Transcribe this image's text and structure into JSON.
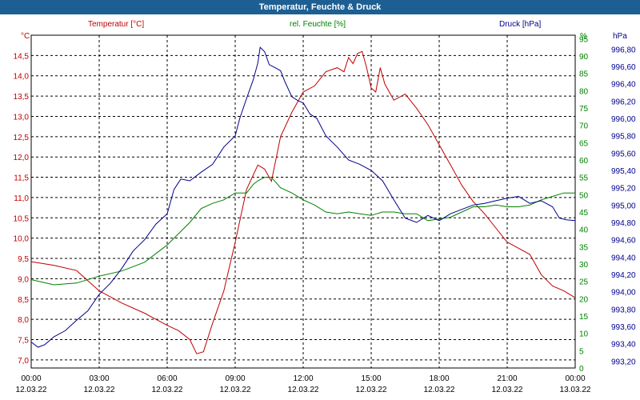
{
  "window": {
    "title": "Temperatur, Feuchte & Druck"
  },
  "colors": {
    "temperature": "#c00000",
    "humidity": "#008000",
    "pressure": "#00008b",
    "title_bar": "#1d5f92"
  },
  "chart_data": {
    "type": "line",
    "title": "Temperatur, Feuchte & Druck",
    "grid": true,
    "x_ticks": [
      {
        "time": "00:00",
        "date": "12.03.22"
      },
      {
        "time": "03:00",
        "date": "12.03.22"
      },
      {
        "time": "06:00",
        "date": "12.03.22"
      },
      {
        "time": "09:00",
        "date": "12.03.22"
      },
      {
        "time": "12:00",
        "date": "12.03.22"
      },
      {
        "time": "15:00",
        "date": "12.03.22"
      },
      {
        "time": "18:00",
        "date": "12.03.22"
      },
      {
        "time": "21:00",
        "date": "12.03.22"
      },
      {
        "time": "00:00",
        "date": "13.03.22"
      }
    ],
    "x_unit": "hours",
    "xlim": [
      0,
      24
    ],
    "axes": {
      "temperature": {
        "header": "Temperatur [°C]",
        "unit": "°C",
        "side": "left",
        "ylim": [
          6.8,
          15.0
        ],
        "ticks": [
          "7,0",
          "7,5",
          "8,0",
          "8,5",
          "9,0",
          "9,5",
          "10,0",
          "10,5",
          "11,0",
          "11,5",
          "12,0",
          "12,5",
          "13,0",
          "13,5",
          "14,0",
          "14,5"
        ]
      },
      "humidity": {
        "header": "rel. Feuchte [%]",
        "unit": "%",
        "side": "right-inner",
        "ylim": [
          0,
          96
        ],
        "ticks": [
          "0",
          "5",
          "10",
          "15",
          "20",
          "25",
          "30",
          "35",
          "40",
          "45",
          "50",
          "55",
          "60",
          "65",
          "70",
          "75",
          "80",
          "85",
          "90",
          "95"
        ]
      },
      "pressure": {
        "header": "Druck [hPa]",
        "unit": "hPa",
        "side": "right-outer",
        "ylim": [
          993.12,
          996.96
        ],
        "ticks": [
          "993,20",
          "993,40",
          "993,60",
          "993,80",
          "994,00",
          "994,20",
          "994,40",
          "994,60",
          "994,80",
          "995,00",
          "995,20",
          "995,40",
          "995,60",
          "995,80",
          "996,00",
          "996,20",
          "996,40",
          "996,60",
          "996,80"
        ]
      }
    },
    "series": [
      {
        "name": "Temperatur [°C]",
        "axis": "temperature",
        "color": "#c00000",
        "x": [
          0,
          1,
          2,
          3,
          4,
          5,
          5.5,
          6,
          6.5,
          7,
          7.3,
          7.6,
          8,
          8.5,
          9,
          9.5,
          10,
          10.3,
          10.6,
          11,
          11.5,
          12,
          12.5,
          13,
          13.5,
          13.8,
          14,
          14.2,
          14.4,
          14.6,
          14.8,
          15,
          15.2,
          15.4,
          15.6,
          16,
          16.5,
          17,
          17.5,
          18,
          18.5,
          19,
          19.5,
          20,
          20.5,
          21,
          21.5,
          22,
          22.5,
          23,
          23.5,
          24
        ],
        "y": [
          9.42,
          9.33,
          9.2,
          8.7,
          8.4,
          8.15,
          8.0,
          7.85,
          7.72,
          7.5,
          7.15,
          7.2,
          7.9,
          8.7,
          9.9,
          11.2,
          11.8,
          11.7,
          11.4,
          12.5,
          13.1,
          13.6,
          13.75,
          14.1,
          14.2,
          14.1,
          14.45,
          14.3,
          14.55,
          14.6,
          14.2,
          13.7,
          13.6,
          14.2,
          13.8,
          13.4,
          13.55,
          13.2,
          12.8,
          12.3,
          11.8,
          11.3,
          10.9,
          10.6,
          10.25,
          9.9,
          9.75,
          9.6,
          9.1,
          8.82,
          8.7,
          8.53
        ]
      },
      {
        "name": "rel. Feuchte [%]",
        "axis": "humidity",
        "color": "#008000",
        "x": [
          0,
          1,
          2,
          3,
          4,
          5,
          6,
          7,
          7.5,
          8,
          8.5,
          9,
          9.5,
          9.8,
          10,
          10.3,
          10.6,
          11,
          11.5,
          12,
          12.5,
          13,
          13.5,
          14,
          14.5,
          15,
          15.5,
          16,
          16.5,
          17,
          17.5,
          18,
          18.5,
          19,
          19.5,
          20,
          20.5,
          21,
          21.5,
          22,
          22.5,
          23,
          23.5,
          24
        ],
        "y": [
          25.5,
          24.0,
          24.5,
          26.5,
          28.0,
          30.5,
          35.5,
          42.0,
          46.0,
          47.5,
          48.5,
          50.5,
          50.5,
          53.0,
          54.0,
          55.0,
          55.0,
          52.0,
          50.5,
          48.5,
          47.0,
          45.0,
          44.5,
          45.0,
          44.5,
          44.0,
          45.0,
          45.0,
          44.5,
          44.5,
          42.5,
          43.0,
          43.5,
          45.0,
          46.5,
          46.5,
          47.0,
          46.5,
          46.5,
          47.0,
          48.5,
          49.5,
          50.5,
          50.5
        ]
      },
      {
        "name": "Druck [hPa]",
        "axis": "pressure",
        "color": "#00008b",
        "x": [
          0,
          0.3,
          0.6,
          1,
          1.5,
          2,
          2.5,
          3,
          3.5,
          4,
          4.5,
          5,
          5.5,
          6,
          6.3,
          6.6,
          7,
          7.5,
          8,
          8.5,
          9,
          9.2,
          9.5,
          9.8,
          10,
          10.1,
          10.3,
          10.5,
          10.8,
          11,
          11.2,
          11.5,
          11.8,
          12,
          12.3,
          12.6,
          13,
          13.5,
          14,
          14.5,
          15,
          15.5,
          16,
          16.5,
          17,
          17.5,
          18,
          18.5,
          19,
          19.5,
          20,
          20.5,
          21,
          21.5,
          22,
          22.5,
          23,
          23.3,
          23.6,
          24
        ],
        "y": [
          993.42,
          993.36,
          993.39,
          993.48,
          993.55,
          993.67,
          993.78,
          993.97,
          994.1,
          994.27,
          994.47,
          994.6,
          994.78,
          994.9,
          995.18,
          995.3,
          995.28,
          995.38,
          995.47,
          995.67,
          995.8,
          996.0,
          996.23,
          996.45,
          996.64,
          996.82,
          996.77,
          996.62,
          996.58,
          996.55,
          996.42,
          996.25,
          996.2,
          996.18,
          996.05,
          996.0,
          995.8,
          995.67,
          995.52,
          995.47,
          995.4,
          995.28,
          995.06,
          994.85,
          994.8,
          994.88,
          994.82,
          994.9,
          994.95,
          995.0,
          995.02,
          995.05,
          995.08,
          995.1,
          995.02,
          995.05,
          994.98,
          994.85,
          994.83,
          994.82
        ]
      }
    ]
  }
}
